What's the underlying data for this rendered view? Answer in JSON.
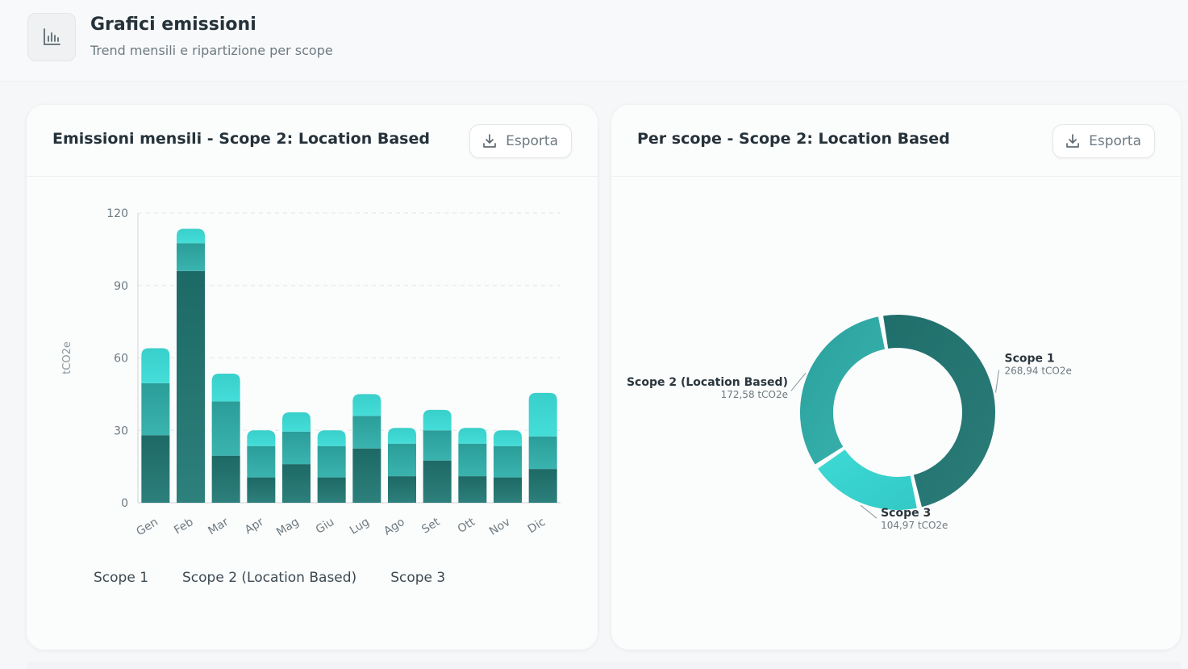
{
  "header": {
    "icon": "bar-chart-icon",
    "title": "Grafici emissioni",
    "subtitle": "Trend mensili e ripartizione per scope"
  },
  "colors": {
    "scope1": "#1f6e6b",
    "scope2": "#2fa8a4",
    "scope3": "#3ed6d2"
  },
  "left_card": {
    "title": "Emissioni mensili - Scope 2: Location Based",
    "export_label": "Esporta"
  },
  "right_card": {
    "title": "Per scope - Scope 2: Location Based",
    "export_label": "Esporta"
  },
  "chart_data": [
    {
      "type": "bar",
      "stacked": true,
      "categories": [
        "Gen",
        "Feb",
        "Mar",
        "Apr",
        "Mag",
        "Giu",
        "Lug",
        "Ago",
        "Set",
        "Ott",
        "Nov",
        "Dic"
      ],
      "series": [
        {
          "name": "Scope 1",
          "values": [
            28,
            96,
            19.5,
            10.5,
            16,
            10.5,
            22.5,
            11,
            17.5,
            11,
            10.5,
            14
          ]
        },
        {
          "name": "Scope 2 (Location Based)",
          "values": [
            21.5,
            11.5,
            22.5,
            13,
            13.5,
            13,
            13.5,
            13.5,
            12.5,
            13.5,
            13,
            13.5
          ]
        },
        {
          "name": "Scope 3",
          "values": [
            14.5,
            6,
            11.5,
            6.5,
            8,
            6.5,
            9,
            6.5,
            8.5,
            6.5,
            6.5,
            18
          ]
        }
      ],
      "ylabel": "tCO2e",
      "ylim": [
        0,
        120
      ],
      "yticks": [
        0,
        30,
        60,
        90,
        120
      ],
      "grid": true,
      "legend": "bottom-left"
    },
    {
      "type": "pie",
      "donut": true,
      "slices": [
        {
          "name": "Scope 1",
          "value": 268.94,
          "label": "268,94 tCO2e"
        },
        {
          "name": "Scope 3",
          "value": 104.97,
          "label": "104,97 tCO2e"
        },
        {
          "name": "Scope 2 (Location Based)",
          "value": 172.58,
          "label": "172,58 tCO2e"
        }
      ]
    }
  ]
}
